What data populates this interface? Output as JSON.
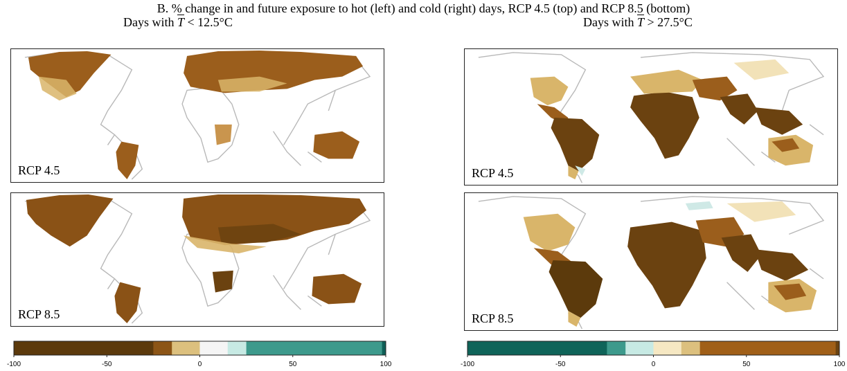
{
  "title": "B. % change in and future exposure to hot (left) and cold (right) days, RCP 4.5 (top) and RCP 8.5 (bottom)",
  "columns": [
    {
      "heading_prefix": "Days with ",
      "heading_var": "T",
      "heading_rel": " < 12.5°C"
    },
    {
      "heading_prefix": "Days with ",
      "heading_var": "T",
      "heading_rel": " > 27.5°C"
    }
  ],
  "panels": {
    "left_top": {
      "label": "RCP 4.5"
    },
    "left_bottom": {
      "label": "RCP 8.5"
    },
    "right_top": {
      "label": "RCP 4.5"
    },
    "right_bottom": {
      "label": "RCP 8.5"
    }
  },
  "colorbars": {
    "left": {
      "ticks": [
        "-100",
        "-50",
        "0",
        "50",
        "100"
      ],
      "range": [
        -100,
        100
      ],
      "segments": [
        {
          "from": -100,
          "to": -25,
          "color": "#5c3a0c"
        },
        {
          "from": -25,
          "to": -15,
          "color": "#8c5516"
        },
        {
          "from": -15,
          "to": 0,
          "color": "#dcc07e"
        },
        {
          "from": 0,
          "to": 15,
          "color": "#f5f5f5"
        },
        {
          "from": 15,
          "to": 25,
          "color": "#c7eae4"
        },
        {
          "from": 25,
          "to": 98,
          "color": "#3d9a8c"
        },
        {
          "from": 98,
          "to": 100,
          "color": "#0f5f57"
        }
      ]
    },
    "right": {
      "ticks": [
        "-100",
        "-50",
        "0",
        "50",
        "100"
      ],
      "range": [
        -100,
        100
      ],
      "segments": [
        {
          "from": -100,
          "to": -25,
          "color": "#0f6459"
        },
        {
          "from": -25,
          "to": -15,
          "color": "#3d9a8c"
        },
        {
          "from": -15,
          "to": 0,
          "color": "#c7eae4"
        },
        {
          "from": 0,
          "to": 15,
          "color": "#f6e8c3"
        },
        {
          "from": 15,
          "to": 25,
          "color": "#dcc07e"
        },
        {
          "from": 25,
          "to": 98,
          "color": "#a05f18"
        },
        {
          "from": 98,
          "to": 100,
          "color": "#6b4210"
        }
      ]
    }
  },
  "colors": {
    "coast": "#b8b8b8",
    "dark_brown": "#6b4210",
    "mid_brown": "#9b5e1c",
    "tan": "#d9b56a",
    "light_tan": "#f2e2b8",
    "pale_teal": "#cfe9e6"
  }
}
